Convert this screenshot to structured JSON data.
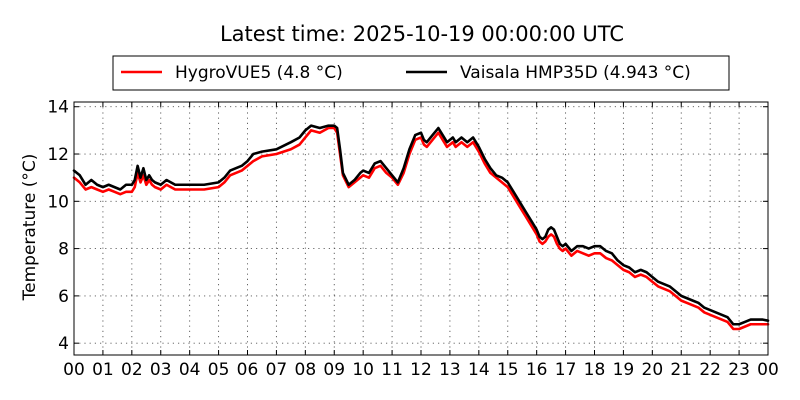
{
  "chart_data": {
    "type": "line",
    "title": "Latest time: 2025-10-19 00:00:00 UTC",
    "xlabel": "",
    "ylabel": "Temperature (°C)",
    "x_ticks": [
      "00",
      "01",
      "02",
      "03",
      "04",
      "05",
      "06",
      "07",
      "08",
      "09",
      "10",
      "11",
      "12",
      "13",
      "14",
      "15",
      "16",
      "17",
      "18",
      "19",
      "20",
      "21",
      "22",
      "23",
      "00"
    ],
    "xlim": [
      0,
      24
    ],
    "ylim": [
      3.5,
      14.2
    ],
    "y_ticks": [
      4,
      6,
      8,
      10,
      12,
      14
    ],
    "grid": true,
    "legend_placement": "top-center",
    "series": [
      {
        "name": "HygroVUE5 (4.8 °C)",
        "color": "#ff0000",
        "x": [
          0,
          0.2,
          0.4,
          0.6,
          0.8,
          1.0,
          1.2,
          1.4,
          1.6,
          1.8,
          2.0,
          2.1,
          2.2,
          2.3,
          2.4,
          2.5,
          2.6,
          2.7,
          2.8,
          3.0,
          3.2,
          3.5,
          4.0,
          4.5,
          5.0,
          5.2,
          5.4,
          5.6,
          5.8,
          6.0,
          6.2,
          6.5,
          7.0,
          7.5,
          7.8,
          8.0,
          8.2,
          8.5,
          8.8,
          9.0,
          9.1,
          9.2,
          9.3,
          9.5,
          9.7,
          9.9,
          10.0,
          10.2,
          10.4,
          10.6,
          10.8,
          11.0,
          11.2,
          11.4,
          11.6,
          11.8,
          12.0,
          12.1,
          12.2,
          12.4,
          12.6,
          12.8,
          12.9,
          13.0,
          13.1,
          13.2,
          13.4,
          13.6,
          13.8,
          14.0,
          14.2,
          14.4,
          14.6,
          14.8,
          15.0,
          15.2,
          15.4,
          15.6,
          15.8,
          16.0,
          16.1,
          16.2,
          16.3,
          16.4,
          16.5,
          16.6,
          16.7,
          16.8,
          16.9,
          17.0,
          17.2,
          17.4,
          17.6,
          17.8,
          18.0,
          18.2,
          18.4,
          18.6,
          18.8,
          19.0,
          19.2,
          19.4,
          19.6,
          19.8,
          20.0,
          20.2,
          20.4,
          20.6,
          20.8,
          21.0,
          21.2,
          21.4,
          21.6,
          21.8,
          22.0,
          22.2,
          22.4,
          22.6,
          22.8,
          23.0,
          23.2,
          23.4,
          23.6,
          23.8,
          24.0
        ],
        "y": [
          11.0,
          10.8,
          10.5,
          10.6,
          10.5,
          10.4,
          10.5,
          10.4,
          10.3,
          10.4,
          10.4,
          10.6,
          11.2,
          10.8,
          11.1,
          10.7,
          10.9,
          10.7,
          10.6,
          10.5,
          10.7,
          10.5,
          10.5,
          10.5,
          10.6,
          10.8,
          11.1,
          11.2,
          11.3,
          11.5,
          11.7,
          11.9,
          12.0,
          12.2,
          12.4,
          12.7,
          13.0,
          12.9,
          13.1,
          13.1,
          12.9,
          12.0,
          11.1,
          10.6,
          10.8,
          11.0,
          11.1,
          11.0,
          11.4,
          11.5,
          11.2,
          11.0,
          10.7,
          11.2,
          12.0,
          12.6,
          12.7,
          12.4,
          12.3,
          12.6,
          12.9,
          12.5,
          12.3,
          12.4,
          12.5,
          12.3,
          12.5,
          12.3,
          12.5,
          12.1,
          11.6,
          11.2,
          11.0,
          10.8,
          10.6,
          10.2,
          9.8,
          9.4,
          9.0,
          8.6,
          8.3,
          8.2,
          8.3,
          8.5,
          8.6,
          8.5,
          8.2,
          8.0,
          7.9,
          8.0,
          7.7,
          7.9,
          7.8,
          7.7,
          7.8,
          7.8,
          7.6,
          7.5,
          7.3,
          7.1,
          7.0,
          6.8,
          6.9,
          6.8,
          6.6,
          6.4,
          6.3,
          6.2,
          6.0,
          5.8,
          5.7,
          5.6,
          5.5,
          5.3,
          5.2,
          5.1,
          5.0,
          4.9,
          4.6,
          4.6,
          4.7,
          4.8,
          4.8,
          4.8,
          4.8
        ]
      },
      {
        "name": "Vaisala HMP35D (4.943 °C)",
        "color": "#000000",
        "x": [
          0,
          0.2,
          0.4,
          0.6,
          0.8,
          1.0,
          1.2,
          1.4,
          1.6,
          1.8,
          2.0,
          2.1,
          2.2,
          2.3,
          2.4,
          2.5,
          2.6,
          2.7,
          2.8,
          3.0,
          3.2,
          3.5,
          4.0,
          4.5,
          5.0,
          5.2,
          5.4,
          5.6,
          5.8,
          6.0,
          6.2,
          6.5,
          7.0,
          7.5,
          7.8,
          8.0,
          8.2,
          8.5,
          8.8,
          9.0,
          9.1,
          9.2,
          9.3,
          9.5,
          9.7,
          9.9,
          10.0,
          10.2,
          10.4,
          10.6,
          10.8,
          11.0,
          11.2,
          11.4,
          11.6,
          11.8,
          12.0,
          12.1,
          12.2,
          12.4,
          12.6,
          12.8,
          12.9,
          13.0,
          13.1,
          13.2,
          13.4,
          13.6,
          13.8,
          14.0,
          14.2,
          14.4,
          14.6,
          14.8,
          15.0,
          15.2,
          15.4,
          15.6,
          15.8,
          16.0,
          16.1,
          16.2,
          16.3,
          16.4,
          16.5,
          16.6,
          16.7,
          16.8,
          16.9,
          17.0,
          17.2,
          17.4,
          17.6,
          17.8,
          18.0,
          18.2,
          18.4,
          18.6,
          18.8,
          19.0,
          19.2,
          19.4,
          19.6,
          19.8,
          20.0,
          20.2,
          20.4,
          20.6,
          20.8,
          21.0,
          21.2,
          21.4,
          21.6,
          21.8,
          22.0,
          22.2,
          22.4,
          22.6,
          22.8,
          23.0,
          23.2,
          23.4,
          23.6,
          23.8,
          24.0
        ],
        "y": [
          11.3,
          11.1,
          10.7,
          10.9,
          10.7,
          10.6,
          10.7,
          10.6,
          10.5,
          10.7,
          10.7,
          10.9,
          11.5,
          11.0,
          11.4,
          10.9,
          11.1,
          10.9,
          10.8,
          10.7,
          10.9,
          10.7,
          10.7,
          10.7,
          10.8,
          11.0,
          11.3,
          11.4,
          11.5,
          11.7,
          12.0,
          12.1,
          12.2,
          12.5,
          12.7,
          13.0,
          13.2,
          13.1,
          13.2,
          13.2,
          13.1,
          12.2,
          11.2,
          10.7,
          10.9,
          11.2,
          11.3,
          11.2,
          11.6,
          11.7,
          11.4,
          11.1,
          10.8,
          11.4,
          12.2,
          12.8,
          12.9,
          12.6,
          12.5,
          12.8,
          13.1,
          12.7,
          12.5,
          12.6,
          12.7,
          12.5,
          12.7,
          12.5,
          12.7,
          12.3,
          11.8,
          11.4,
          11.1,
          11.0,
          10.8,
          10.4,
          10.0,
          9.6,
          9.2,
          8.8,
          8.5,
          8.4,
          8.5,
          8.8,
          8.9,
          8.8,
          8.5,
          8.2,
          8.1,
          8.2,
          7.9,
          8.1,
          8.1,
          8.0,
          8.1,
          8.1,
          7.9,
          7.8,
          7.5,
          7.3,
          7.2,
          7.0,
          7.1,
          7.0,
          6.8,
          6.6,
          6.5,
          6.4,
          6.2,
          6.0,
          5.9,
          5.8,
          5.7,
          5.5,
          5.4,
          5.3,
          5.2,
          5.1,
          4.8,
          4.8,
          4.9,
          5.0,
          5.0,
          5.0,
          4.95
        ]
      }
    ]
  }
}
